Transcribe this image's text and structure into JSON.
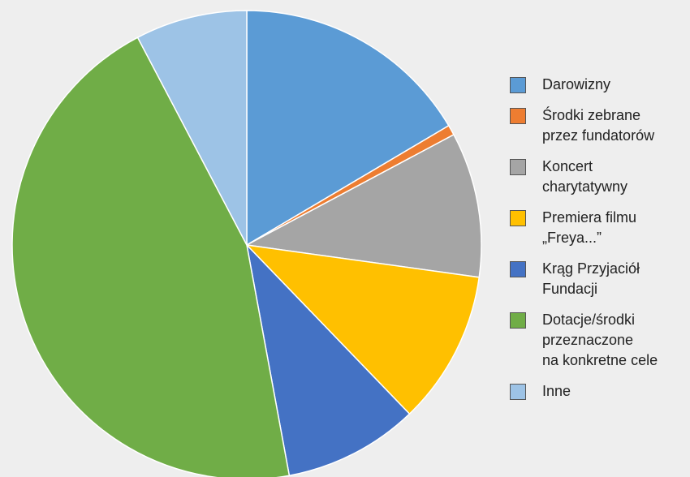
{
  "chart_data": {
    "type": "pie",
    "categories": [
      "Darowizny",
      "Środki zebrane\nprzez fundatorów",
      "Koncert\ncharytatywny",
      "Premiera filmu\n„Freya...”",
      "Krąg Przyjaciół\nFundacji",
      "Dotacje/środki\nprzeznaczone\nna konkretne cele",
      "Inne"
    ],
    "values": [
      16.5,
      0.7,
      10,
      10.6,
      9.3,
      45.2,
      7.7
    ],
    "colors": [
      "#5b9bd5",
      "#ed7d31",
      "#a5a5a5",
      "#ffc000",
      "#4472c4",
      "#70ad47",
      "#9dc3e6"
    ],
    "legend": "right"
  }
}
